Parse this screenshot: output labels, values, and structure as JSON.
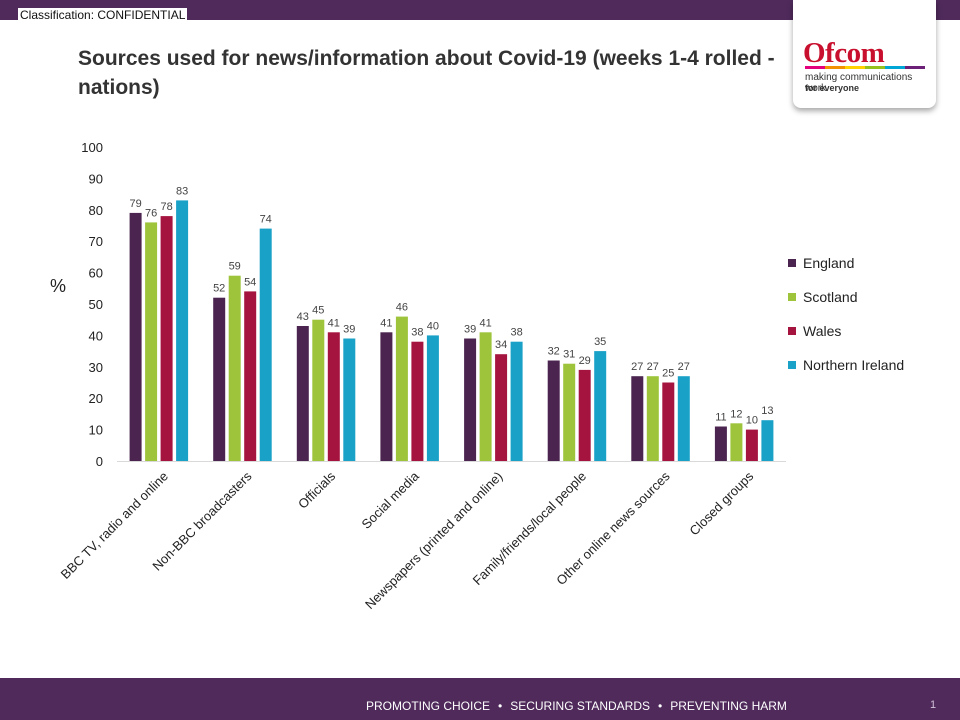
{
  "header": {
    "classification": "Classification: CONFIDENTIAL",
    "title": "Sources used for news/information about Covid-19 (weeks 1-4 rolled - nations)"
  },
  "logo": {
    "name": "Ofcom",
    "tagline_1": "making communications work",
    "tagline_2": "for everyone",
    "stripe_colors": [
      "#e4007c",
      "#f39200",
      "#ffd200",
      "#95c11f",
      "#00a6d6",
      "#6d2077"
    ]
  },
  "footer": {
    "slogans": [
      "PROMOTING CHOICE",
      "SECURING STANDARDS",
      "PREVENTING HARM"
    ],
    "page_number": "1"
  },
  "colors": {
    "brand_purple": "#4f2a5b",
    "england": "#4b2550",
    "scotland": "#9ec43c",
    "wales": "#a5143f",
    "northern_ireland": "#1aa1c8"
  },
  "chart_data": {
    "type": "bar",
    "title": "Sources used for news/information about Covid-19 (weeks 1-4 rolled - nations)",
    "xlabel": "",
    "ylabel": "%",
    "ylim": [
      0,
      100
    ],
    "yticks": [
      0,
      10,
      20,
      30,
      40,
      50,
      60,
      70,
      80,
      90,
      100
    ],
    "grid": false,
    "legend_position": "right",
    "categories": [
      "BBC TV, radio and online",
      "Non-BBC broadcasters",
      "Officials",
      "Social media",
      "Newspapers (printed and online)",
      "Family/friends/local people",
      "Other online news sources",
      "Closed groups"
    ],
    "series": [
      {
        "name": "England",
        "color": "#4b2550",
        "values": [
          79,
          52,
          43,
          41,
          39,
          32,
          27,
          11
        ]
      },
      {
        "name": "Scotland",
        "color": "#9ec43c",
        "values": [
          76,
          59,
          45,
          46,
          41,
          31,
          27,
          12
        ]
      },
      {
        "name": "Wales",
        "color": "#a5143f",
        "values": [
          78,
          54,
          41,
          38,
          34,
          29,
          25,
          10
        ]
      },
      {
        "name": "Northern Ireland",
        "color": "#1aa1c8",
        "values": [
          83,
          74,
          39,
          40,
          38,
          35,
          27,
          13
        ]
      }
    ]
  }
}
